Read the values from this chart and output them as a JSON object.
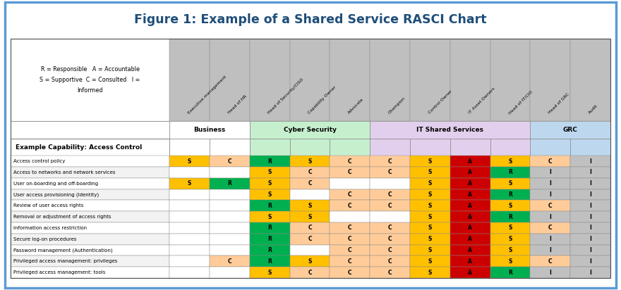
{
  "title": "Figure 1: Example of a Shared Service RASCI Chart",
  "title_color": "#1F4E79",
  "col_headers": [
    "Executive management",
    "Head of HR",
    "Head of Security/CISO",
    "Capability Owner",
    "Advocate",
    "Champion",
    "Control Owner",
    "IT Asset Owners",
    "Head of IT/CIO",
    "Head of GRC",
    "Audit"
  ],
  "group_headers": [
    {
      "label": "Business",
      "start": 0,
      "end": 1,
      "color": "#FFFFFF"
    },
    {
      "label": "Cyber Security",
      "start": 2,
      "end": 4,
      "color": "#C6EFCE"
    },
    {
      "label": "IT Shared Services",
      "start": 5,
      "end": 8,
      "color": "#E2CFED"
    },
    {
      "label": "GRC",
      "start": 9,
      "end": 10,
      "color": "#BDD7EE"
    }
  ],
  "row_header": "Example Capability: Access Control",
  "rows": [
    "Access control policy",
    "Access to networks and network services",
    "User on-boarding and off-boarding",
    "User access provisioning (Identity)",
    "Review of user access rights",
    "Removal or adjustment of access rights",
    "Information access restriction",
    "Secure log-on procedures",
    "Password management (Authentication)",
    "Privileged access management: privileges",
    "Privileged access management: tools"
  ],
  "cells": [
    [
      "S",
      "C",
      "R",
      "S",
      "C",
      "C",
      "S",
      "A",
      "S",
      "C",
      "I"
    ],
    [
      "",
      "",
      "S",
      "C",
      "C",
      "C",
      "S",
      "A",
      "R",
      "I",
      "I"
    ],
    [
      "S",
      "R",
      "S",
      "C",
      "",
      "",
      "S",
      "A",
      "S",
      "I",
      "I"
    ],
    [
      "",
      "",
      "S",
      "",
      "C",
      "C",
      "S",
      "A",
      "R",
      "I",
      "I"
    ],
    [
      "",
      "",
      "R",
      "S",
      "C",
      "C",
      "S",
      "A",
      "S",
      "C",
      "I"
    ],
    [
      "",
      "",
      "S",
      "S",
      "",
      "",
      "S",
      "A",
      "R",
      "I",
      "I"
    ],
    [
      "",
      "",
      "R",
      "C",
      "C",
      "C",
      "S",
      "A",
      "S",
      "C",
      "I"
    ],
    [
      "",
      "",
      "R",
      "C",
      "C",
      "C",
      "S",
      "A",
      "S",
      "I",
      "I"
    ],
    [
      "",
      "",
      "R",
      "",
      "C",
      "C",
      "S",
      "A",
      "S",
      "I",
      "I"
    ],
    [
      "",
      "C",
      "R",
      "S",
      "C",
      "C",
      "S",
      "A",
      "S",
      "C",
      "I"
    ],
    [
      "",
      "",
      "S",
      "C",
      "C",
      "C",
      "S",
      "A",
      "R",
      "I",
      "I"
    ]
  ],
  "cell_colors": {
    "R": "#00B050",
    "A": "#CC0000",
    "S": "#FFC000",
    "C": "#FFCC99",
    "I": "#C0C0C0",
    "": "#FFFFFF"
  },
  "header_bg": "#BFBFBF",
  "row_alt_colors": [
    "#FFFFFF",
    "#F2F2F2"
  ],
  "fig_bg": "#FFFFFF",
  "outer_border_color": "#5B9BD5"
}
